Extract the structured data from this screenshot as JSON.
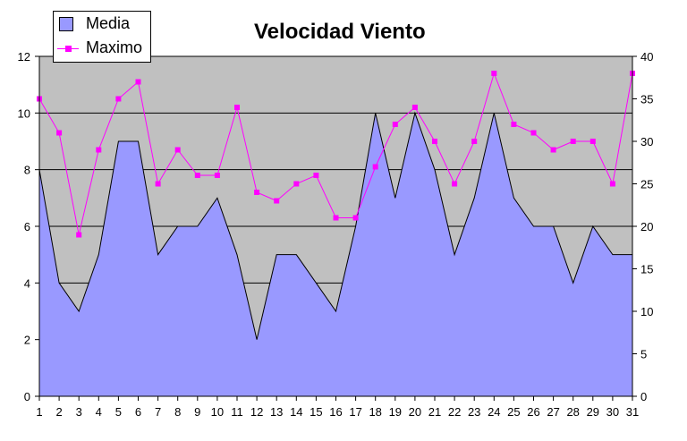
{
  "chart_data": {
    "type": "area",
    "title": "Velocidad Viento",
    "categories": [
      "1",
      "2",
      "3",
      "4",
      "5",
      "6",
      "7",
      "8",
      "9",
      "10",
      "11",
      "12",
      "13",
      "14",
      "15",
      "16",
      "17",
      "18",
      "19",
      "20",
      "21",
      "22",
      "23",
      "24",
      "25",
      "26",
      "27",
      "28",
      "29",
      "30",
      "31"
    ],
    "series": [
      {
        "name": "Media",
        "type": "area",
        "axis": "left",
        "values": [
          8,
          4,
          3,
          5,
          9,
          9,
          5,
          6,
          6,
          7,
          5,
          2,
          5,
          5,
          4,
          3,
          6,
          10,
          7,
          10,
          8,
          5,
          7,
          10,
          7,
          6,
          6,
          4,
          6,
          5,
          5
        ]
      },
      {
        "name": "Maximo",
        "type": "line",
        "axis": "right",
        "values": [
          35,
          31,
          19,
          29,
          35,
          37,
          25,
          29,
          26,
          26,
          34,
          24,
          23,
          25,
          26,
          21,
          21,
          27,
          32,
          34,
          30,
          25,
          30,
          38,
          32,
          31,
          29,
          30,
          30,
          25,
          38
        ]
      }
    ],
    "y_left": {
      "range": [
        0,
        12
      ],
      "ticks": [
        "0",
        "2",
        "4",
        "6",
        "8",
        "10",
        "12"
      ]
    },
    "y_right": {
      "range": [
        0,
        40
      ],
      "ticks": [
        "0",
        "5",
        "10",
        "15",
        "20",
        "25",
        "30",
        "35",
        "40"
      ]
    },
    "grid": true,
    "legend_position": "top-left",
    "colors": {
      "plot_bg": "#c0c0c0",
      "area_fill": "#9999ff",
      "line": "#ff00ff",
      "gridline": "#000000"
    }
  }
}
